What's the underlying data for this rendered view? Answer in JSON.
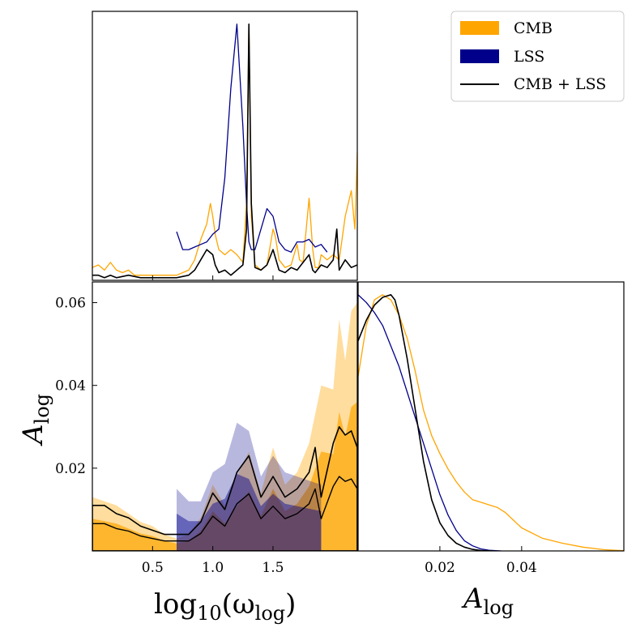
{
  "colors": {
    "CMB": "#FFA500",
    "LSS": "#00008B",
    "CMB + LSS": "#000000"
  },
  "legend": {
    "items": [
      "CMB",
      "LSS",
      "CMB + LSS"
    ],
    "placement": "top-right"
  },
  "axis_labels": {
    "x_left_base": "log",
    "x_left_sub": "10",
    "x_left_paren": "(ω",
    "x_left_subvar": "log",
    "x_left_close": ")",
    "y_left_base": "A",
    "y_left_sub": "log",
    "x_right_base": "A",
    "x_right_sub": "log"
  },
  "chart_data": [
    {
      "type": "line",
      "panel": "marginal log10(omega_log)",
      "xlim": [
        0.0,
        2.2
      ],
      "ylim": [
        0,
        1.05
      ],
      "series": [
        {
          "name": "CMB",
          "x": [
            0.0,
            0.05,
            0.1,
            0.15,
            0.2,
            0.25,
            0.3,
            0.35,
            0.4,
            0.5,
            0.6,
            0.7,
            0.8,
            0.85,
            0.9,
            0.95,
            0.98,
            1.0,
            1.02,
            1.05,
            1.1,
            1.15,
            1.2,
            1.25,
            1.28,
            1.3,
            1.32,
            1.35,
            1.4,
            1.45,
            1.5,
            1.52,
            1.55,
            1.6,
            1.65,
            1.7,
            1.72,
            1.75,
            1.8,
            1.83,
            1.85,
            1.88,
            1.9,
            1.95,
            2.0,
            2.05,
            2.1,
            2.15,
            2.18,
            2.2
          ],
          "y": [
            0.05,
            0.06,
            0.04,
            0.07,
            0.04,
            0.03,
            0.04,
            0.02,
            0.02,
            0.02,
            0.02,
            0.02,
            0.04,
            0.08,
            0.16,
            0.22,
            0.3,
            0.25,
            0.18,
            0.12,
            0.1,
            0.12,
            0.1,
            0.07,
            0.3,
            1.0,
            0.25,
            0.06,
            0.04,
            0.06,
            0.2,
            0.17,
            0.08,
            0.05,
            0.06,
            0.14,
            0.08,
            0.07,
            0.32,
            0.12,
            0.05,
            0.05,
            0.1,
            0.08,
            0.1,
            0.08,
            0.25,
            0.35,
            0.2,
            0.5
          ]
        },
        {
          "name": "LSS",
          "x": [
            0.7,
            0.75,
            0.8,
            0.85,
            0.9,
            0.95,
            1.0,
            1.05,
            1.1,
            1.15,
            1.2,
            1.25,
            1.28,
            1.3,
            1.32,
            1.35,
            1.4,
            1.45,
            1.5,
            1.55,
            1.6,
            1.65,
            1.7,
            1.75,
            1.8,
            1.85,
            1.9,
            1.95
          ],
          "y": [
            0.19,
            0.12,
            0.12,
            0.13,
            0.14,
            0.15,
            0.18,
            0.2,
            0.4,
            0.75,
            1.0,
            0.6,
            0.3,
            0.15,
            0.12,
            0.12,
            0.2,
            0.28,
            0.25,
            0.15,
            0.12,
            0.11,
            0.15,
            0.15,
            0.16,
            0.13,
            0.14,
            0.11
          ]
        },
        {
          "name": "CMB + LSS",
          "x": [
            0.0,
            0.05,
            0.1,
            0.15,
            0.2,
            0.3,
            0.4,
            0.5,
            0.6,
            0.7,
            0.8,
            0.85,
            0.9,
            0.95,
            1.0,
            1.02,
            1.05,
            1.1,
            1.15,
            1.2,
            1.25,
            1.28,
            1.3,
            1.32,
            1.35,
            1.4,
            1.45,
            1.5,
            1.55,
            1.6,
            1.65,
            1.7,
            1.75,
            1.8,
            1.83,
            1.85,
            1.9,
            1.95,
            2.0,
            2.03,
            2.05,
            2.1,
            2.15,
            2.2
          ],
          "y": [
            0.02,
            0.02,
            0.01,
            0.02,
            0.01,
            0.02,
            0.01,
            0.01,
            0.01,
            0.01,
            0.02,
            0.04,
            0.08,
            0.12,
            0.1,
            0.06,
            0.03,
            0.04,
            0.02,
            0.04,
            0.06,
            0.2,
            1.0,
            0.3,
            0.05,
            0.04,
            0.06,
            0.12,
            0.04,
            0.03,
            0.05,
            0.04,
            0.07,
            0.1,
            0.04,
            0.03,
            0.06,
            0.05,
            0.08,
            0.2,
            0.04,
            0.08,
            0.05,
            0.06
          ]
        }
      ]
    },
    {
      "type": "line",
      "panel": "marginal A_log",
      "xlim": [
        0.0,
        0.065
      ],
      "ylim": [
        0,
        1.05
      ],
      "ticks": {
        "x": [
          0.02,
          0.04
        ]
      },
      "series": [
        {
          "name": "CMB",
          "x": [
            0.0,
            0.002,
            0.004,
            0.006,
            0.008,
            0.01,
            0.012,
            0.014,
            0.016,
            0.018,
            0.02,
            0.022,
            0.024,
            0.026,
            0.028,
            0.03,
            0.032,
            0.034,
            0.036,
            0.038,
            0.04,
            0.045,
            0.05,
            0.055,
            0.06,
            0.065
          ],
          "y": [
            0.68,
            0.88,
            0.98,
            1.0,
            0.98,
            0.92,
            0.83,
            0.7,
            0.55,
            0.45,
            0.38,
            0.32,
            0.27,
            0.23,
            0.2,
            0.19,
            0.18,
            0.17,
            0.15,
            0.12,
            0.09,
            0.05,
            0.03,
            0.015,
            0.005,
            0.001
          ]
        },
        {
          "name": "LSS",
          "x": [
            0.0,
            0.002,
            0.004,
            0.006,
            0.008,
            0.01,
            0.012,
            0.014,
            0.016,
            0.018,
            0.02,
            0.022,
            0.024,
            0.026,
            0.028,
            0.03,
            0.032,
            0.035
          ],
          "y": [
            1.0,
            0.97,
            0.93,
            0.88,
            0.8,
            0.72,
            0.62,
            0.52,
            0.42,
            0.32,
            0.22,
            0.14,
            0.08,
            0.04,
            0.02,
            0.008,
            0.003,
            0.0
          ]
        },
        {
          "name": "CMB + LSS",
          "x": [
            0.0,
            0.002,
            0.004,
            0.006,
            0.008,
            0.009,
            0.01,
            0.012,
            0.014,
            0.016,
            0.018,
            0.02,
            0.022,
            0.024,
            0.026,
            0.028,
            0.03,
            0.033
          ],
          "y": [
            0.82,
            0.9,
            0.96,
            0.99,
            1.0,
            0.98,
            0.92,
            0.75,
            0.55,
            0.35,
            0.2,
            0.11,
            0.06,
            0.03,
            0.015,
            0.006,
            0.002,
            0.0
          ]
        }
      ]
    },
    {
      "type": "scatter",
      "panel": "2D posterior A_log vs log10(omega_log)",
      "xlim": [
        0.0,
        2.2
      ],
      "ylim": [
        0.0,
        0.065
      ],
      "ticks": {
        "x": [
          0.5,
          1.0,
          1.5
        ],
        "y": [
          0.02,
          0.04,
          0.06
        ]
      },
      "series": [
        {
          "name": "CMB",
          "x": [
            0.0,
            0.1,
            0.2,
            0.3,
            0.4,
            0.5,
            0.6,
            0.7,
            0.8,
            0.9,
            1.0,
            1.1,
            1.2,
            1.3,
            1.4,
            1.5,
            1.6,
            1.7,
            1.8,
            1.9,
            2.0,
            2.05,
            2.1,
            2.15,
            2.2
          ],
          "y": [
            0.013,
            0.012,
            0.011,
            0.009,
            0.007,
            0.006,
            0.004,
            0.003,
            0.004,
            0.008,
            0.016,
            0.011,
            0.018,
            0.024,
            0.014,
            0.025,
            0.016,
            0.019,
            0.026,
            0.04,
            0.039,
            0.056,
            0.046,
            0.058,
            0.06
          ]
        },
        {
          "name": "LSS",
          "x": [
            0.7,
            0.8,
            0.9,
            1.0,
            1.1,
            1.2,
            1.3,
            1.4,
            1.5,
            1.6,
            1.7,
            1.8,
            1.9
          ],
          "y": [
            0.015,
            0.012,
            0.012,
            0.019,
            0.021,
            0.031,
            0.029,
            0.018,
            0.023,
            0.019,
            0.018,
            0.017,
            0.016
          ]
        },
        {
          "name": "CMB + LSS",
          "x": [
            0.0,
            0.1,
            0.2,
            0.3,
            0.4,
            0.5,
            0.6,
            0.7,
            0.8,
            0.9,
            1.0,
            1.1,
            1.2,
            1.3,
            1.4,
            1.5,
            1.6,
            1.7,
            1.8,
            1.85,
            1.9,
            2.0,
            2.05,
            2.1,
            2.15,
            2.2
          ],
          "y": [
            0.011,
            0.011,
            0.009,
            0.008,
            0.006,
            0.005,
            0.004,
            0.004,
            0.004,
            0.007,
            0.014,
            0.01,
            0.019,
            0.023,
            0.013,
            0.018,
            0.013,
            0.015,
            0.019,
            0.025,
            0.013,
            0.026,
            0.03,
            0.028,
            0.029,
            0.025
          ]
        }
      ]
    }
  ]
}
